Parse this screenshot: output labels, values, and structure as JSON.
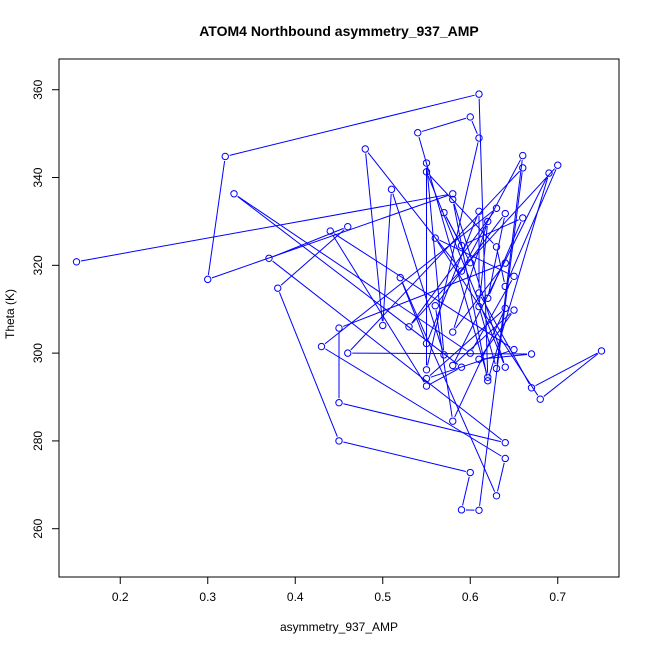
{
  "chart_data": {
    "type": "line",
    "title": "ATOM4 Northbound asymmetry_937_AMP",
    "xlabel": "asymmetry_937_AMP",
    "ylabel": "Theta (K)",
    "xlim": [
      0.13,
      0.77
    ],
    "ylim": [
      249,
      367
    ],
    "xticks": [
      "0.2",
      "0.3",
      "0.4",
      "0.5",
      "0.6",
      "0.7"
    ],
    "yticks": [
      "260",
      "280",
      "300",
      "320",
      "340",
      "360"
    ],
    "grid": false,
    "color": "#0000ff",
    "markers": "open-circle",
    "series": [
      {
        "name": "",
        "points": [
          [
            0.15,
            320.8
          ],
          [
            0.58,
            336.3
          ],
          [
            0.3,
            316.8
          ],
          [
            0.32,
            344.8
          ],
          [
            0.61,
            359.0
          ],
          [
            0.62,
            294.5
          ],
          [
            0.54,
            350.2
          ],
          [
            0.6,
            353.8
          ],
          [
            0.61,
            349.0
          ],
          [
            0.55,
            296.2
          ],
          [
            0.55,
            343.3
          ],
          [
            0.57,
            299.6
          ],
          [
            0.51,
            337.3
          ],
          [
            0.5,
            306.3
          ],
          [
            0.48,
            346.5
          ],
          [
            0.59,
            318.7
          ],
          [
            0.66,
            345.0
          ],
          [
            0.63,
            296.5
          ],
          [
            0.61,
            310.6
          ],
          [
            0.62,
            330.0
          ],
          [
            0.58,
            304.8
          ],
          [
            0.64,
            320.5
          ],
          [
            0.45,
            305.7
          ],
          [
            0.45,
            288.7
          ],
          [
            0.64,
            279.6
          ],
          [
            0.37,
            321.6
          ],
          [
            0.46,
            328.8
          ],
          [
            0.38,
            314.8
          ],
          [
            0.45,
            280.0
          ],
          [
            0.6,
            272.8
          ],
          [
            0.59,
            264.3
          ],
          [
            0.61,
            264.2
          ],
          [
            0.66,
            342.2
          ],
          [
            0.46,
            300.0
          ],
          [
            0.67,
            299.8
          ],
          [
            0.61,
            298.6
          ],
          [
            0.65,
            309.8
          ],
          [
            0.58,
            297.2
          ],
          [
            0.69,
            341.0
          ],
          [
            0.62,
            293.7
          ],
          [
            0.58,
            335.0
          ],
          [
            0.64,
            296.8
          ],
          [
            0.55,
            341.3
          ],
          [
            0.63,
            324.2
          ],
          [
            0.64,
            315.2
          ],
          [
            0.7,
            342.8
          ],
          [
            0.53,
            306.0
          ],
          [
            0.63,
            333.0
          ],
          [
            0.43,
            301.5
          ],
          [
            0.64,
            276.0
          ],
          [
            0.63,
            267.5
          ],
          [
            0.52,
            317.2
          ],
          [
            0.55,
            302.2
          ],
          [
            0.61,
            332.3
          ],
          [
            0.61,
            313.7
          ],
          [
            0.67,
            292.1
          ],
          [
            0.75,
            300.5
          ],
          [
            0.68,
            289.5
          ],
          [
            0.56,
            326.2
          ],
          [
            0.65,
            317.5
          ],
          [
            0.6,
            300.0
          ],
          [
            0.33,
            336.3
          ],
          [
            0.59,
            296.8
          ],
          [
            0.55,
            292.5
          ],
          [
            0.44,
            327.8
          ],
          [
            0.65,
            300.8
          ],
          [
            0.55,
            294.2
          ],
          [
            0.64,
            310.2
          ],
          [
            0.58,
            284.5
          ],
          [
            0.56,
            310.8
          ],
          [
            0.64,
            331.8
          ],
          [
            0.62,
            312.5
          ],
          [
            0.66,
            330.8
          ],
          [
            0.59,
            324.5
          ],
          [
            0.57,
            332.0
          ],
          [
            0.6,
            320.6
          ]
        ]
      }
    ]
  }
}
